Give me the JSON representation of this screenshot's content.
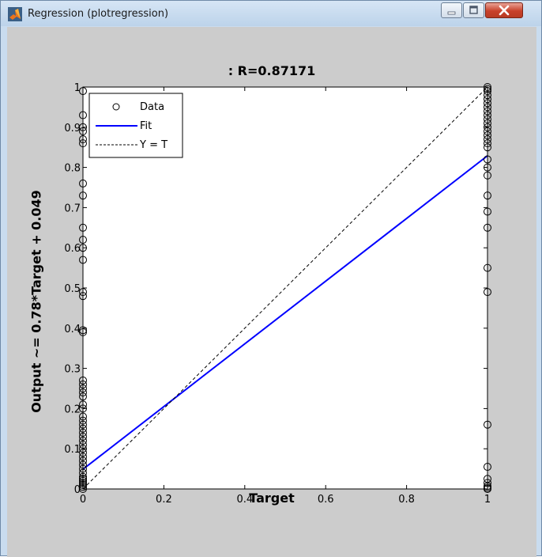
{
  "window": {
    "title": "Regression (plotregression)",
    "icon": "matlab-icon",
    "controls": [
      "minimize-icon",
      "maximize-icon",
      "close-icon"
    ],
    "close_color": "#c8412b"
  },
  "chart_data": {
    "type": "scatter",
    "title": ": R=0.87171",
    "xlabel": "Target",
    "ylabel": "Output ~= 0.78*Target + 0.049",
    "xlim": [
      0,
      1
    ],
    "ylim": [
      0,
      1
    ],
    "xticks": [
      "0",
      "0.2",
      "0.4",
      "0.6",
      "0.8",
      "1"
    ],
    "yticks": [
      "0",
      "0.1",
      "0.2",
      "0.3",
      "0.4",
      "0.5",
      "0.6",
      "0.7",
      "0.8",
      "0.9",
      "1"
    ],
    "grid": false,
    "legend": {
      "placement": "top-left",
      "entries": [
        "Data",
        "Fit",
        "Y = T"
      ]
    },
    "series": [
      {
        "name": "Data",
        "marker": "open-circle",
        "color": "#000000",
        "points": [
          [
            0,
            0
          ],
          [
            0,
            0.005
          ],
          [
            0,
            0.01
          ],
          [
            0,
            0.015
          ],
          [
            0,
            0.02
          ],
          [
            0,
            0.025
          ],
          [
            0,
            0.03
          ],
          [
            0,
            0.04
          ],
          [
            0,
            0.05
          ],
          [
            0,
            0.06
          ],
          [
            0,
            0.07
          ],
          [
            0,
            0.08
          ],
          [
            0,
            0.09
          ],
          [
            0,
            0.1
          ],
          [
            0,
            0.11
          ],
          [
            0,
            0.12
          ],
          [
            0,
            0.13
          ],
          [
            0,
            0.14
          ],
          [
            0,
            0.15
          ],
          [
            0,
            0.16
          ],
          [
            0,
            0.17
          ],
          [
            0,
            0.18
          ],
          [
            0,
            0.2
          ],
          [
            0,
            0.21
          ],
          [
            0,
            0.23
          ],
          [
            0,
            0.24
          ],
          [
            0,
            0.25
          ],
          [
            0,
            0.26
          ],
          [
            0,
            0.27
          ],
          [
            0,
            0.39
          ],
          [
            0,
            0.395
          ],
          [
            0,
            0.48
          ],
          [
            0,
            0.49
          ],
          [
            0,
            0.57
          ],
          [
            0,
            0.6
          ],
          [
            0,
            0.62
          ],
          [
            0,
            0.65
          ],
          [
            0,
            0.73
          ],
          [
            0,
            0.76
          ],
          [
            0,
            0.86
          ],
          [
            0,
            0.87
          ],
          [
            0,
            0.89
          ],
          [
            0,
            0.9
          ],
          [
            0,
            0.93
          ],
          [
            0,
            0.99
          ],
          [
            1,
            0
          ],
          [
            1,
            0.003
          ],
          [
            1,
            0.007
          ],
          [
            1,
            0.015
          ],
          [
            1,
            0.025
          ],
          [
            1,
            0.055
          ],
          [
            1,
            0.16
          ],
          [
            1,
            0.49
          ],
          [
            1,
            0.55
          ],
          [
            1,
            0.65
          ],
          [
            1,
            0.69
          ],
          [
            1,
            0.73
          ],
          [
            1,
            0.78
          ],
          [
            1,
            0.8
          ],
          [
            1,
            0.82
          ],
          [
            1,
            0.85
          ],
          [
            1,
            0.86
          ],
          [
            1,
            0.87
          ],
          [
            1,
            0.88
          ],
          [
            1,
            0.89
          ],
          [
            1,
            0.9
          ],
          [
            1,
            0.91
          ],
          [
            1,
            0.92
          ],
          [
            1,
            0.93
          ],
          [
            1,
            0.94
          ],
          [
            1,
            0.95
          ],
          [
            1,
            0.96
          ],
          [
            1,
            0.97
          ],
          [
            1,
            0.98
          ],
          [
            1,
            0.99
          ],
          [
            1,
            0.995
          ],
          [
            1,
            1
          ]
        ]
      },
      {
        "name": "Fit",
        "line": "solid",
        "color": "#0000ff",
        "points": [
          [
            0,
            0.049
          ],
          [
            1,
            0.829
          ]
        ]
      },
      {
        "name": "Y = T",
        "line": "dashed",
        "color": "#000000",
        "points": [
          [
            0,
            0
          ],
          [
            1,
            1
          ]
        ]
      }
    ]
  }
}
